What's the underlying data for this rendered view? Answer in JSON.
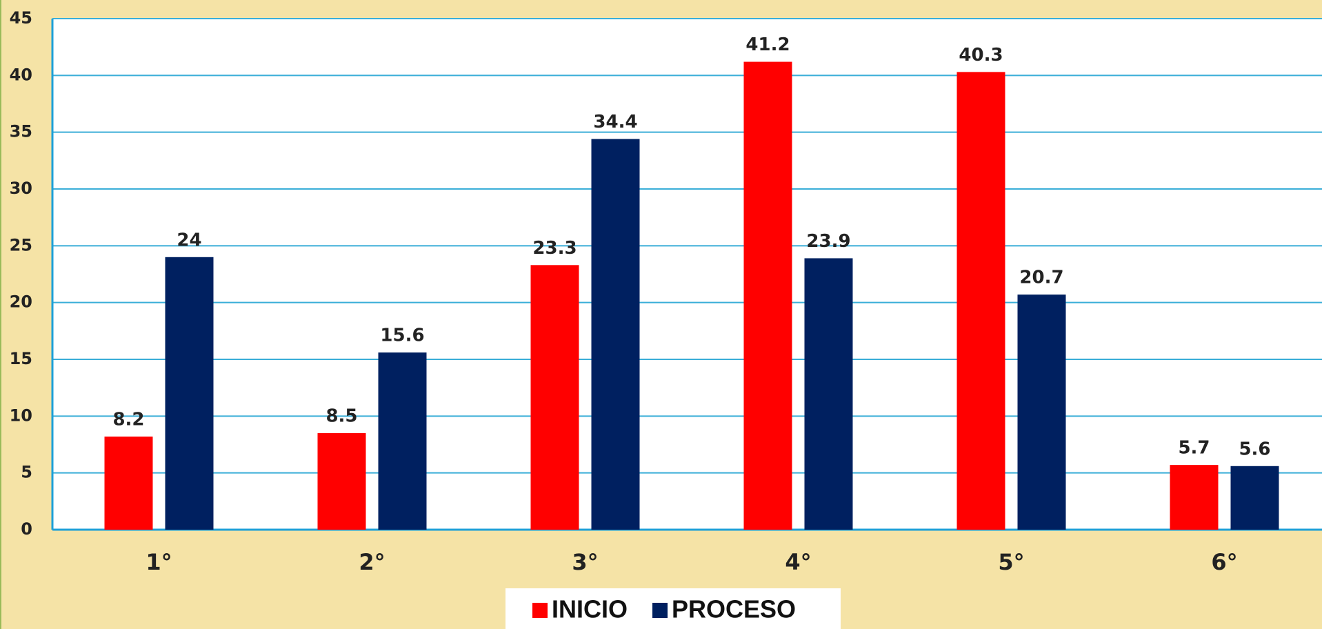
{
  "chart_data": {
    "type": "bar",
    "categories": [
      "1°",
      "2°",
      "3°",
      "4°",
      "5°",
      "6°"
    ],
    "series": [
      {
        "name": "INICIO",
        "color": "#ff0000",
        "values": [
          8.2,
          8.5,
          23.3,
          41.2,
          40.3,
          5.7
        ]
      },
      {
        "name": "PROCESO",
        "color": "#002060",
        "values": [
          24,
          15.6,
          34.4,
          23.9,
          20.7,
          5.6
        ]
      }
    ],
    "ylim": [
      0,
      45
    ],
    "yticks": [
      0,
      5,
      10,
      15,
      20,
      25,
      30,
      35,
      40,
      45
    ],
    "grid": true,
    "legend": "bottom"
  }
}
